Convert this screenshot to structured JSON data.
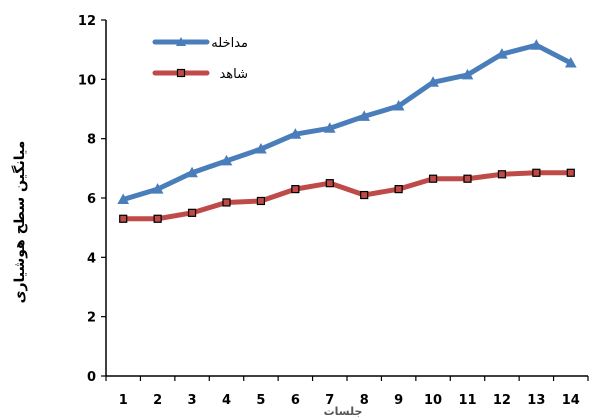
{
  "chart_data": {
    "type": "line",
    "xlabel": "جلسات",
    "ylabel": "میانگین سطح هوشیاری",
    "x": [
      1,
      2,
      3,
      4,
      5,
      6,
      7,
      8,
      9,
      10,
      11,
      12,
      13,
      14
    ],
    "ylim": [
      0,
      12
    ],
    "yticks": [
      0,
      2,
      4,
      6,
      8,
      10,
      12
    ],
    "grid": false,
    "legend": "top-left",
    "series": [
      {
        "name": "مداخله",
        "marker": "triangle",
        "color": "#4a7ebb",
        "values": [
          5.95,
          6.3,
          6.85,
          7.25,
          7.65,
          8.15,
          8.35,
          8.75,
          9.1,
          9.9,
          10.15,
          10.85,
          11.15,
          10.55
        ]
      },
      {
        "name": "شاهد",
        "marker": "square",
        "color": "#be4b48",
        "values": [
          5.3,
          5.3,
          5.5,
          5.85,
          5.9,
          6.3,
          6.5,
          6.1,
          6.3,
          6.65,
          6.65,
          6.8,
          6.85,
          6.85
        ]
      }
    ]
  }
}
